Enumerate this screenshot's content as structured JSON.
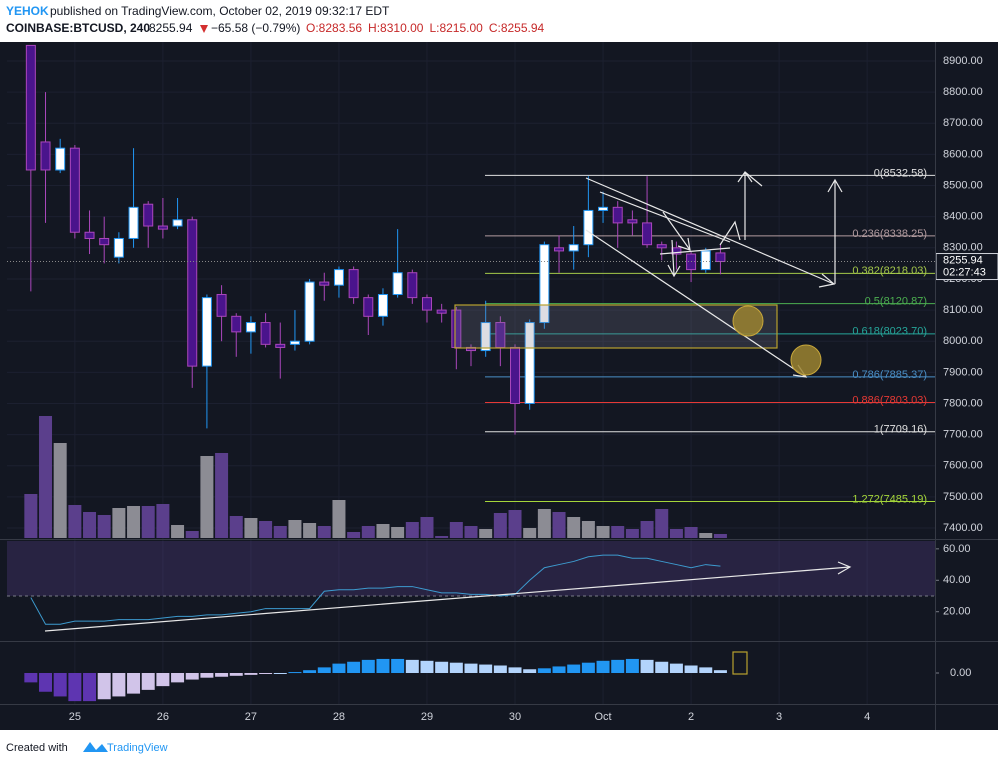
{
  "chart_data": {
    "type": "candlestick",
    "author": "YEHOK",
    "title": "published on TradingView.com, October 02, 2019 09:32:17 EDT",
    "subtitle": "COINBASE:BTCUSD, 240",
    "header_price": "8255.94",
    "header_change": "−65.58 (−0.79%)",
    "header_ohlc": [
      "O:8283.56",
      "H:8310.00",
      "L:8215.00",
      "C:8255.94"
    ],
    "footer": "Created with",
    "brand": "TradingView",
    "x": [
      -12,
      -8,
      -4,
      0,
      4,
      8,
      12,
      16,
      20,
      24,
      28,
      32,
      36,
      40,
      44,
      48,
      52,
      56,
      60,
      64,
      68,
      72,
      76,
      80,
      84,
      88,
      92,
      96,
      100,
      104,
      108,
      112,
      116,
      120,
      124,
      128,
      132,
      136,
      140,
      144,
      148,
      152,
      156,
      160,
      164,
      168,
      172,
      176
    ],
    "open": [
      8950,
      8640,
      8550,
      8620,
      8350,
      8330,
      8270,
      8330,
      8440,
      8370,
      8370,
      8390,
      7920,
      8150,
      8080,
      8030,
      8060,
      7990,
      7990,
      8000,
      8190,
      8180,
      8230,
      8140,
      8080,
      8150,
      8220,
      8140,
      8100,
      8100,
      7980,
      7970,
      8060,
      7980,
      7800,
      8060,
      8300,
      8290,
      8310,
      8420,
      8430,
      8390,
      8380,
      8310,
      8300,
      8280,
      8230,
      8283.56
    ],
    "high": [
      8950,
      8800,
      8650,
      8630,
      8420,
      8400,
      8350,
      8620,
      8450,
      8460,
      8460,
      8400,
      8150,
      8180,
      8090,
      8080,
      8090,
      8060,
      8100,
      8200,
      8220,
      8240,
      8240,
      8150,
      8170,
      8360,
      8230,
      8150,
      8120,
      8110,
      7990,
      8130,
      8080,
      7990,
      8070,
      8320,
      8340,
      8370,
      8530,
      8480,
      8450,
      8420,
      8530,
      8320,
      8320,
      8290,
      8300,
      8310
    ],
    "low": [
      8160,
      8380,
      8540,
      8330,
      8280,
      8250,
      8250,
      8300,
      8300,
      8330,
      8360,
      7850,
      7720,
      8000,
      7950,
      7960,
      7980,
      7880,
      7970,
      7990,
      8130,
      8140,
      8120,
      8020,
      8050,
      8140,
      8120,
      8060,
      8060,
      7910,
      7920,
      7950,
      7920,
      7700,
      7780,
      8040,
      8220,
      8230,
      8270,
      8380,
      8300,
      8340,
      8300,
      8260,
      8230,
      8190,
      8220,
      8215
    ],
    "close": [
      8550,
      8550,
      8620,
      8350,
      8330,
      8310,
      8330,
      8430,
      8370,
      8360,
      8390,
      7920,
      8140,
      8080,
      8030,
      8060,
      7990,
      7980,
      8000,
      8190,
      8180,
      8230,
      8140,
      8080,
      8150,
      8220,
      8140,
      8100,
      8090,
      7980,
      7970,
      8060,
      7980,
      7800,
      8060,
      8310,
      8290,
      8310,
      8420,
      8430,
      8380,
      8380,
      8310,
      8300,
      8280,
      8230,
      8290,
      8255.94
    ],
    "up_color": "#ffffff",
    "down_color": "#4a148c",
    "up_wick": "#2196f3",
    "down_wick": "#ab47bc",
    "xlim": [
      -18.5,
      234.5
    ],
    "xticks": [
      {
        "value": 0,
        "label": "25"
      },
      {
        "value": 24,
        "label": "26"
      },
      {
        "value": 48,
        "label": "27"
      },
      {
        "value": 72,
        "label": "28"
      },
      {
        "value": 96,
        "label": "29"
      },
      {
        "value": 120,
        "label": "30"
      },
      {
        "value": 144,
        "label": "Oct"
      },
      {
        "value": 168,
        "label": "2"
      },
      {
        "value": 192,
        "label": "3"
      },
      {
        "value": 216,
        "label": "4"
      }
    ],
    "ylim": [
      7368,
      8961
    ],
    "yticks": [
      {
        "value": 8900,
        "label": "8900.00"
      },
      {
        "value": 8800,
        "label": "8800.00"
      },
      {
        "value": 8700,
        "label": "8700.00"
      },
      {
        "value": 8600,
        "label": "8600.00"
      },
      {
        "value": 8500,
        "label": "8500.00"
      },
      {
        "value": 8400,
        "label": "8400.00"
      },
      {
        "value": 8300,
        "label": "8300.00"
      },
      {
        "value": 8200,
        "label": "8200.00"
      },
      {
        "value": 8100,
        "label": "8100.00"
      },
      {
        "value": 8000,
        "label": "8000.00"
      },
      {
        "value": 7900,
        "label": "7900.00"
      },
      {
        "value": 7800,
        "label": "7800.00"
      },
      {
        "value": 7700,
        "label": "7700.00"
      },
      {
        "value": 7600,
        "label": "7600.00"
      },
      {
        "value": 7500,
        "label": "7500.00"
      },
      {
        "value": 7400,
        "label": "7400.00"
      }
    ],
    "grid": true,
    "last_price": 8255.94,
    "countdown": "02:27:43",
    "fib_levels": [
      {
        "label": "0(8532.58)",
        "value": 8532.58,
        "color": "#e0e0e0"
      },
      {
        "label": "0.236(8338.25)",
        "value": 8338.25,
        "color": "#b39ca0"
      },
      {
        "label": "0.382(8218.03)",
        "value": 8218.03,
        "color": "#a5c94a"
      },
      {
        "label": "0.5(8120.87)",
        "value": 8120.87,
        "color": "#4caf50"
      },
      {
        "label": "0.618(8023.70)",
        "value": 8023.7,
        "color": "#26a69a"
      },
      {
        "label": "0.786(7885.37)",
        "value": 7885.37,
        "color": "#4a8fc7"
      },
      {
        "label": "0.886(7803.03)",
        "value": 7803.03,
        "color": "#e53935"
      },
      {
        "label": "1(7709.16)",
        "value": 7709.16,
        "color": "#e0e0e0"
      },
      {
        "label": "1.272(7485.19)",
        "value": 7485.19,
        "color": "#a5d63a"
      }
    ],
    "volume": [
      44,
      122,
      95,
      33,
      26,
      23,
      30,
      32,
      32,
      34,
      13,
      7,
      82,
      85,
      22,
      20,
      17,
      12,
      18,
      15,
      12,
      38,
      6,
      12,
      14,
      11,
      16,
      21,
      2,
      16,
      12,
      9,
      25,
      28,
      10,
      29,
      26,
      21,
      17,
      12,
      12,
      9,
      17,
      29,
      9,
      11,
      5,
      4
    ],
    "volume_up_color": "#8c8c94",
    "volume_down_color": "#5b3f8c",
    "rsi": {
      "values": [
        29,
        12,
        12,
        14,
        14,
        14,
        15,
        15,
        15,
        16,
        17,
        17,
        18,
        18,
        19,
        20,
        22,
        22,
        22,
        22,
        33,
        34,
        34,
        35,
        35,
        36,
        36,
        34,
        32,
        32,
        31,
        31,
        30,
        31,
        40,
        48,
        50,
        52,
        55,
        56,
        56,
        54,
        54,
        52,
        50,
        48,
        50,
        49
      ],
      "color": "#3d9bcf",
      "ylim": [
        2,
        65
      ],
      "yticks": [
        {
          "value": 60,
          "label": "60.00"
        },
        {
          "value": 40,
          "label": "40.00"
        },
        {
          "value": 20,
          "label": "20.00"
        }
      ],
      "band": [
        30,
        70
      ]
    },
    "macd": {
      "values": [
        -10,
        -20,
        -25,
        -30,
        -30,
        -28,
        -25,
        -22,
        -18,
        -14,
        -10,
        -7,
        -5,
        -4,
        -3,
        -2,
        -1,
        0,
        1,
        3,
        6,
        10,
        12,
        14,
        15,
        15,
        14,
        13,
        12,
        11,
        10,
        9,
        8,
        6,
        4,
        5,
        7,
        9,
        11,
        13,
        14,
        15,
        14,
        12,
        10,
        8,
        6,
        3
      ],
      "ylim": [
        -32,
        32
      ],
      "yticks": [
        {
          "value": 0,
          "label": "0.00"
        }
      ]
    }
  }
}
